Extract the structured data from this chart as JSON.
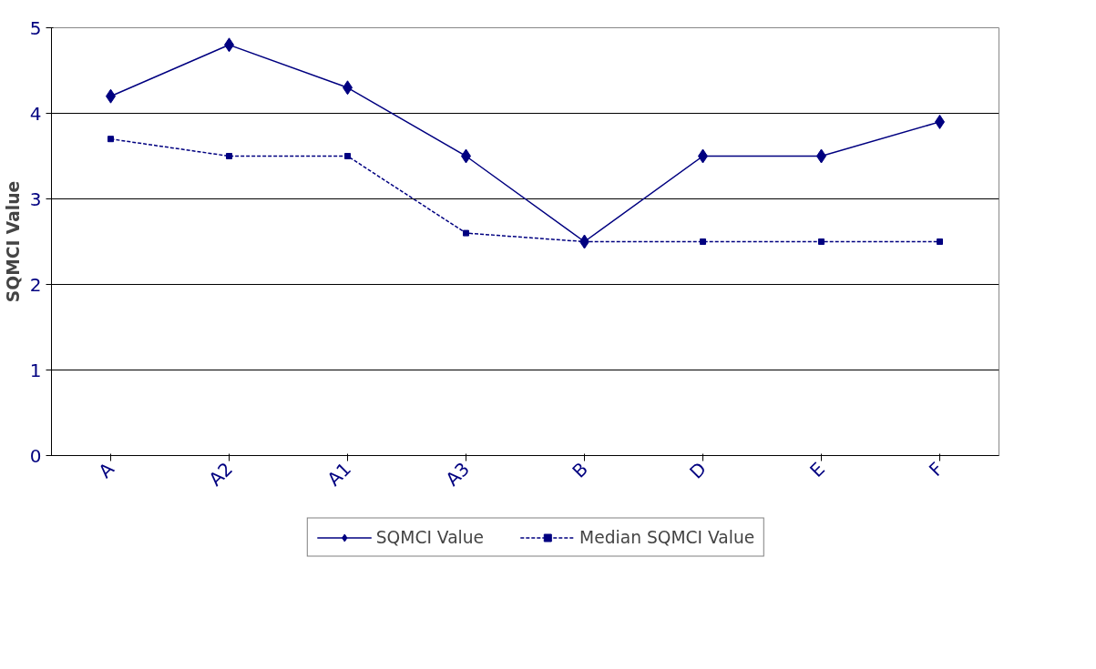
{
  "chart_data": {
    "type": "line",
    "ylabel": "SQMCI Value",
    "categories": [
      "A",
      "A2",
      "A1",
      "A3",
      "B",
      "D",
      "E",
      "F"
    ],
    "series": [
      {
        "name": "SQMCI Value",
        "color": "#000080",
        "marker": "diamond",
        "line_style": "solid",
        "values": [
          4.2,
          4.8,
          4.3,
          3.5,
          2.5,
          3.5,
          3.5,
          3.9
        ]
      },
      {
        "name": "Median SQMCI Value",
        "color": "#000080",
        "marker": "square",
        "line_style": "dashed",
        "values": [
          3.7,
          3.5,
          3.5,
          2.6,
          2.5,
          2.5,
          2.5,
          2.5
        ]
      }
    ],
    "ylim": [
      0,
      5
    ],
    "yticks": [
      0,
      1,
      2,
      3,
      4,
      5
    ],
    "grid": "y",
    "legend": "bottom"
  }
}
